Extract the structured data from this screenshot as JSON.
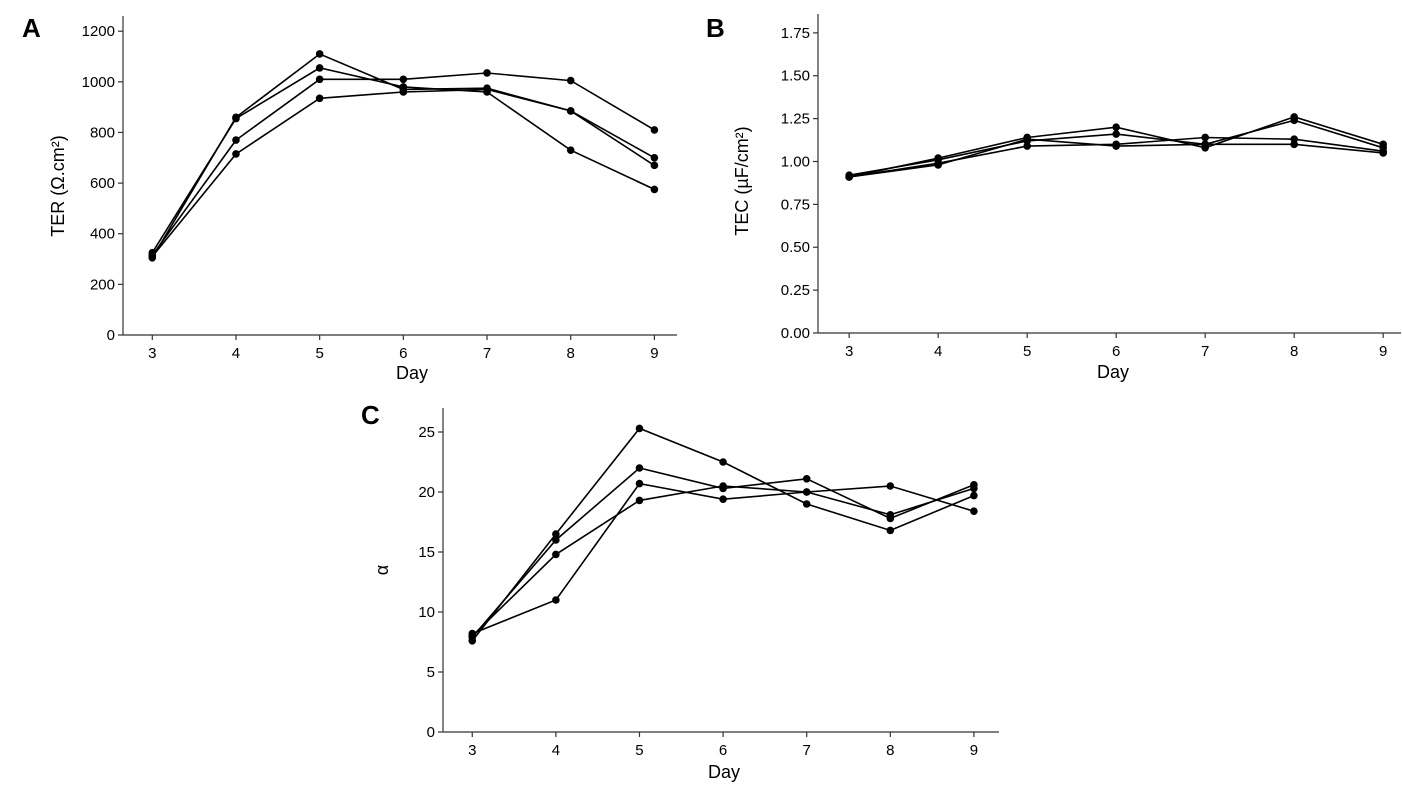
{
  "colors": {
    "series": "#000000",
    "axis": "#333333",
    "background": "#ffffff"
  },
  "chart_data": [
    {
      "id": "A",
      "panel_label": "A",
      "type": "line",
      "xlabel": "Day",
      "ylabel": "TER (Ω.cm²)",
      "x": [
        3,
        4,
        5,
        6,
        7,
        8,
        9
      ],
      "xlim": [
        2.65,
        9.27
      ],
      "ylim": [
        0,
        1260
      ],
      "yticks": [
        0,
        200,
        400,
        600,
        800,
        1000,
        1200
      ],
      "ytick_labels": [
        "0",
        "200",
        "400",
        "600",
        "800",
        "1000",
        "1200"
      ],
      "series": [
        {
          "values": [
            305,
            860,
            1110,
            970,
            975,
            885,
            700
          ]
        },
        {
          "values": [
            325,
            855,
            1055,
            980,
            960,
            730,
            575
          ]
        },
        {
          "values": [
            315,
            770,
            1010,
            1010,
            1035,
            1005,
            810
          ]
        },
        {
          "values": [
            310,
            715,
            935,
            960,
            970,
            885,
            670
          ]
        }
      ]
    },
    {
      "id": "B",
      "panel_label": "B",
      "type": "line",
      "xlabel": "Day",
      "ylabel": "TEC (µF/cm²)",
      "x": [
        3,
        4,
        5,
        6,
        7,
        8,
        9
      ],
      "xlim": [
        2.65,
        9.2
      ],
      "ylim": [
        0,
        1.86
      ],
      "yticks": [
        0,
        0.25,
        0.5,
        0.75,
        1.0,
        1.25,
        1.5,
        1.75
      ],
      "ytick_labels": [
        "0.00",
        "0.25",
        "0.50",
        "0.75",
        "1.00",
        "1.25",
        "1.50",
        "1.75"
      ],
      "series": [
        {
          "values": [
            0.91,
            1.02,
            1.14,
            1.2,
            1.08,
            1.26,
            1.1
          ]
        },
        {
          "values": [
            0.92,
            1.01,
            1.12,
            1.16,
            1.1,
            1.24,
            1.08
          ]
        },
        {
          "values": [
            0.91,
            0.99,
            1.09,
            1.1,
            1.14,
            1.13,
            1.06
          ]
        },
        {
          "values": [
            0.91,
            0.98,
            1.13,
            1.09,
            1.1,
            1.1,
            1.05
          ]
        }
      ]
    },
    {
      "id": "C",
      "panel_label": "C",
      "type": "line",
      "xlabel": "Day",
      "ylabel": "α",
      "x": [
        3,
        4,
        5,
        6,
        7,
        8,
        9
      ],
      "xlim": [
        2.65,
        9.3
      ],
      "ylim": [
        0,
        27
      ],
      "yticks": [
        0,
        5,
        10,
        15,
        20,
        25
      ],
      "ytick_labels": [
        "0",
        "5",
        "10",
        "15",
        "20",
        "25"
      ],
      "series": [
        {
          "values": [
            7.6,
            16.5,
            25.3,
            22.5,
            19.0,
            16.8,
            19.7
          ]
        },
        {
          "values": [
            8.2,
            11.0,
            20.7,
            19.4,
            20.0,
            20.5,
            18.4
          ]
        },
        {
          "values": [
            7.9,
            16.0,
            22.0,
            20.3,
            21.1,
            17.8,
            20.6
          ]
        },
        {
          "values": [
            8.0,
            14.8,
            19.3,
            20.5,
            20.0,
            18.1,
            20.3
          ]
        }
      ]
    }
  ]
}
